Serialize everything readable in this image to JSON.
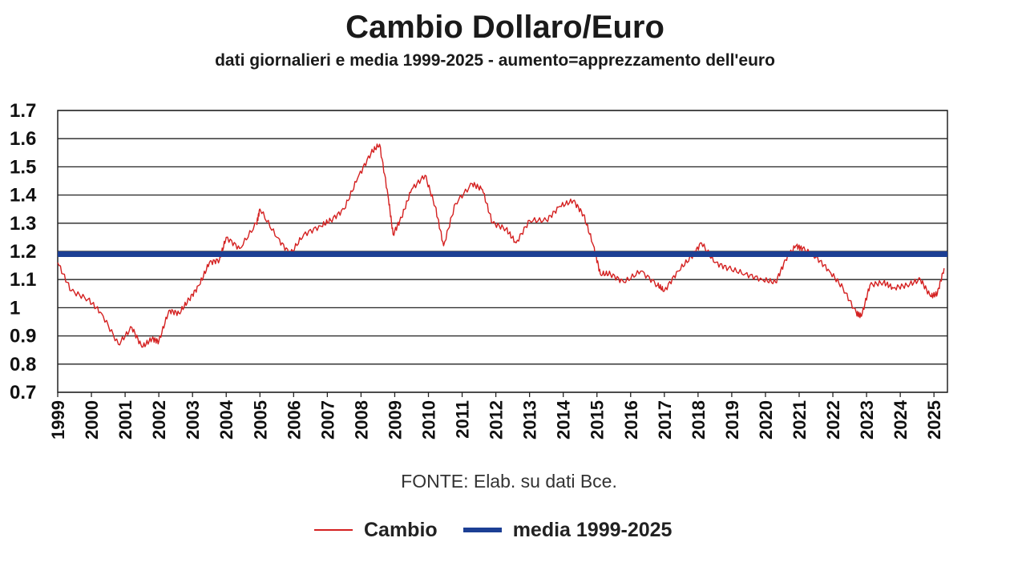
{
  "chart_data": {
    "type": "line",
    "title": "Cambio Dollaro/Euro",
    "subtitle": "dati giornalieri e media 1999-2025 - aumento=apprezzamento dell'euro",
    "source": "FONTE: Elab. su dati Bce.",
    "ylim": [
      0.7,
      1.7
    ],
    "y_ticks": [
      "1.7",
      "1.6",
      "1.5",
      "1.4",
      "1.3",
      "1.2",
      "1.1",
      "1",
      "0.9",
      "0.8",
      "0.7"
    ],
    "x_ticks": [
      "1999",
      "2000",
      "2001",
      "2002",
      "2003",
      "2004",
      "2005",
      "2006",
      "2007",
      "2008",
      "2009",
      "2010",
      "2011",
      "2012",
      "2013",
      "2014",
      "2015",
      "2016",
      "2017",
      "2018",
      "2019",
      "2020",
      "2021",
      "2022",
      "2023",
      "2024",
      "2025"
    ],
    "grid": true,
    "legend_position": "bottom",
    "series": [
      {
        "name": "Cambio",
        "color": "#d42020",
        "x": [
          1999.0,
          1999.4,
          1999.9,
          2000.3,
          2000.8,
          2001.2,
          2001.5,
          2001.8,
          2002.0,
          2002.3,
          2002.6,
          2002.9,
          2003.2,
          2003.5,
          2003.8,
          2004.0,
          2004.4,
          2004.9,
          2005.0,
          2005.5,
          2005.9,
          2006.3,
          2006.8,
          2007.1,
          2007.5,
          2007.9,
          2008.3,
          2008.55,
          2008.8,
          2008.95,
          2009.2,
          2009.5,
          2009.9,
          2010.2,
          2010.45,
          2010.8,
          2011.3,
          2011.6,
          2011.9,
          2012.3,
          2012.6,
          2013.0,
          2013.5,
          2013.9,
          2014.3,
          2014.6,
          2014.9,
          2015.1,
          2015.4,
          2015.8,
          2016.3,
          2016.8,
          2017.0,
          2017.4,
          2017.8,
          2018.1,
          2018.5,
          2018.9,
          2019.4,
          2019.9,
          2020.3,
          2020.6,
          2020.9,
          2021.1,
          2021.5,
          2021.9,
          2022.3,
          2022.7,
          2022.85,
          2023.1,
          2023.5,
          2023.8,
          2024.2,
          2024.6,
          2024.9,
          2025.1,
          2025.3
        ],
        "y": [
          1.16,
          1.06,
          1.03,
          0.98,
          0.87,
          0.93,
          0.86,
          0.89,
          0.88,
          0.99,
          0.98,
          1.03,
          1.08,
          1.16,
          1.17,
          1.25,
          1.21,
          1.3,
          1.35,
          1.25,
          1.19,
          1.26,
          1.29,
          1.31,
          1.35,
          1.46,
          1.55,
          1.58,
          1.4,
          1.26,
          1.32,
          1.42,
          1.47,
          1.36,
          1.22,
          1.37,
          1.44,
          1.42,
          1.3,
          1.28,
          1.23,
          1.31,
          1.31,
          1.36,
          1.38,
          1.33,
          1.22,
          1.12,
          1.12,
          1.09,
          1.13,
          1.08,
          1.06,
          1.13,
          1.18,
          1.23,
          1.16,
          1.14,
          1.12,
          1.1,
          1.09,
          1.17,
          1.22,
          1.21,
          1.18,
          1.13,
          1.07,
          0.98,
          0.97,
          1.08,
          1.09,
          1.07,
          1.08,
          1.1,
          1.04,
          1.05,
          1.14
        ]
      },
      {
        "name": "media  1999-2025",
        "color": "#1c3f94",
        "x": [
          1999.0,
          2025.3
        ],
        "y": [
          1.19,
          1.19
        ]
      }
    ]
  },
  "legend": {
    "cambio_label": "Cambio",
    "media_label": "media  1999-2025"
  }
}
